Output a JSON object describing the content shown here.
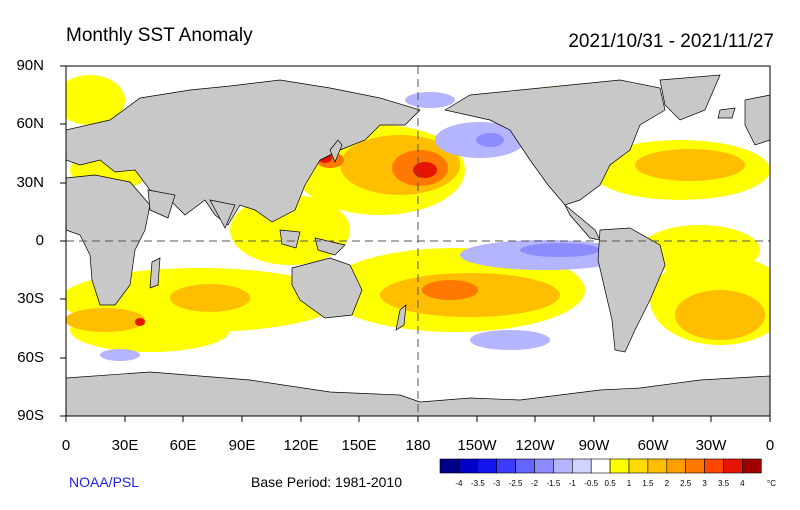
{
  "title": "Monthly SST Anomaly",
  "date_range": "2021/10/31 - 2021/11/27",
  "lat_labels": [
    "90N",
    "60N",
    "30N",
    "0",
    "30S",
    "60S",
    "90S"
  ],
  "lon_labels": [
    "0",
    "30E",
    "60E",
    "90E",
    "120E",
    "150E",
    "180",
    "150W",
    "120W",
    "90W",
    "60W",
    "30W",
    "0"
  ],
  "credit": "NOAA/PSL",
  "base_period": "Base Period: 1981-2010",
  "colorbar": {
    "labels": [
      "-4",
      "-3.5",
      "-3",
      "-2.5",
      "-2",
      "-1.5",
      "-1",
      "-0.5",
      "0.5",
      "1",
      "1.5",
      "2",
      "2.5",
      "3",
      "3.5",
      "4"
    ],
    "unit": "°C",
    "colors": [
      "#00008a",
      "#0000c8",
      "#1414f0",
      "#3c3cff",
      "#6464ff",
      "#8c8cff",
      "#b4b4ff",
      "#d2d2ff",
      "#ffffff",
      "#ffff00",
      "#ffdc00",
      "#ffbe00",
      "#ffa000",
      "#ff7800",
      "#ff4600",
      "#e61400",
      "#a00000"
    ]
  },
  "colors": {
    "land": "#c8c8c8",
    "neutral_ocean": "#ffffff",
    "warm": "#ffbe00",
    "cool": "#b4b4ff"
  }
}
